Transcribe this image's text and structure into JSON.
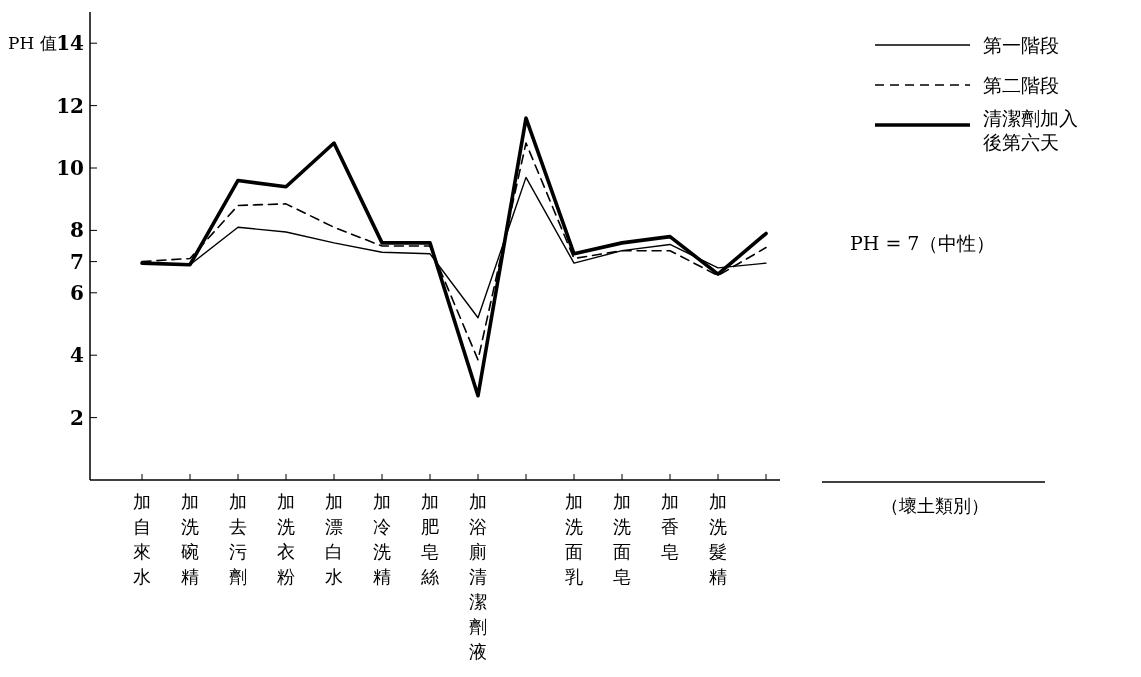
{
  "chart_data": {
    "type": "line",
    "ylabel": "PH 值",
    "categories": [
      "加自來水",
      "加洗碗精",
      "加去污劑",
      "加洗衣粉",
      "加漂白水",
      "加冷洗精",
      "加肥皂絲",
      "加浴廁清潔劑液",
      null,
      "加洗面乳",
      "加洗面皂",
      "加香皂",
      "加洗髮精",
      null
    ],
    "series": [
      {
        "name": "第一階段",
        "color": "#000000",
        "line_style": "solid",
        "values": [
          6.95,
          6.9,
          8.1,
          7.95,
          7.6,
          7.3,
          7.25,
          5.2,
          9.7,
          6.95,
          7.35,
          7.55,
          6.8,
          6.95
        ]
      },
      {
        "name": "第二階段",
        "color": "#000000",
        "line_style": "dashed",
        "values": [
          7.0,
          7.1,
          8.8,
          8.85,
          8.1,
          7.5,
          7.5,
          3.85,
          10.8,
          7.1,
          7.35,
          7.35,
          6.55,
          7.45
        ]
      },
      {
        "name": "清潔劑加入後第六天",
        "color": "#000000",
        "line_style": "solid",
        "values": [
          6.95,
          6.9,
          9.6,
          9.4,
          10.8,
          7.6,
          7.6,
          2.7,
          11.6,
          7.25,
          7.6,
          7.8,
          6.6,
          7.9
        ]
      }
    ],
    "ylim": [
      0,
      15
    ],
    "yticks": [
      2,
      4,
      6,
      7,
      8,
      10,
      12,
      14
    ],
    "grid": false,
    "legend": "top right",
    "annotations": [
      "（壞土類別）",
      "PH = 7（中性）"
    ]
  }
}
